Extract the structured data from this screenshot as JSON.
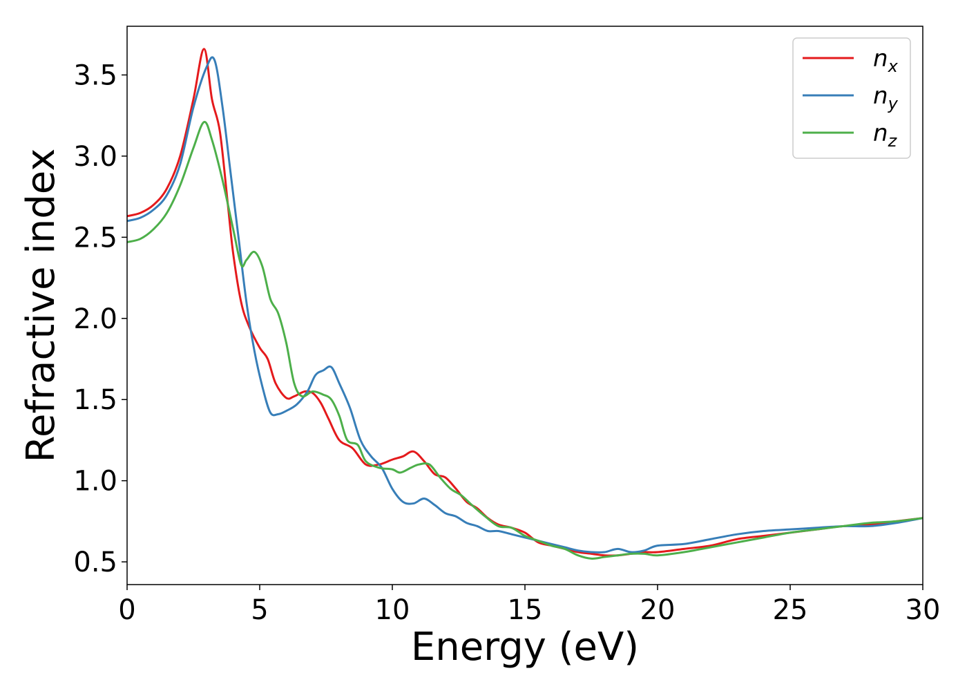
{
  "chart_data": {
    "type": "line",
    "title": "",
    "xlabel": "Energy (eV)",
    "ylabel": "Refractive index",
    "xlim": [
      0,
      30
    ],
    "ylim": [
      0.36,
      3.8
    ],
    "xticks": [
      0,
      5,
      10,
      15,
      20,
      25,
      30
    ],
    "xtick_labels": [
      "0",
      "5",
      "10",
      "15",
      "20",
      "25",
      "30"
    ],
    "yticks": [
      0.5,
      1.0,
      1.5,
      2.0,
      2.5,
      3.0,
      3.5
    ],
    "ytick_labels": [
      "0.5",
      "1.0",
      "1.5",
      "2.0",
      "2.5",
      "3.0",
      "3.5"
    ],
    "grid": false,
    "legend_position": "top-right",
    "series": [
      {
        "name": "n_x",
        "legend_base": "n",
        "legend_sub": "x",
        "color": "#e41a1c",
        "x": [
          0,
          0.5,
          1.0,
          1.5,
          2.0,
          2.5,
          2.9,
          3.2,
          3.5,
          3.8,
          4.0,
          4.3,
          4.6,
          5.0,
          5.3,
          5.6,
          6.0,
          6.3,
          6.7,
          7.0,
          7.3,
          7.6,
          8.0,
          8.5,
          9.0,
          9.5,
          10.0,
          10.4,
          10.8,
          11.2,
          11.6,
          12.0,
          12.4,
          12.8,
          13.2,
          13.6,
          14.0,
          14.5,
          15.0,
          15.5,
          16.0,
          16.5,
          17.0,
          17.5,
          18.0,
          18.5,
          19.0,
          19.5,
          20.0,
          21.0,
          22.0,
          23.0,
          24.0,
          25.0,
          26.0,
          27.0,
          28.0,
          29.0,
          30.0
        ],
        "y": [
          2.63,
          2.65,
          2.7,
          2.8,
          3.0,
          3.35,
          3.66,
          3.35,
          3.15,
          2.7,
          2.4,
          2.1,
          1.95,
          1.82,
          1.75,
          1.6,
          1.51,
          1.52,
          1.55,
          1.54,
          1.48,
          1.38,
          1.25,
          1.2,
          1.1,
          1.1,
          1.13,
          1.15,
          1.18,
          1.12,
          1.04,
          1.02,
          0.95,
          0.87,
          0.83,
          0.77,
          0.73,
          0.71,
          0.68,
          0.62,
          0.6,
          0.58,
          0.56,
          0.55,
          0.54,
          0.54,
          0.55,
          0.56,
          0.56,
          0.58,
          0.6,
          0.64,
          0.66,
          0.68,
          0.7,
          0.72,
          0.73,
          0.75,
          0.77
        ]
      },
      {
        "name": "n_y",
        "legend_base": "n",
        "legend_sub": "y",
        "color": "#377eb8",
        "x": [
          0,
          0.5,
          1.0,
          1.5,
          2.0,
          2.5,
          3.0,
          3.3,
          3.6,
          3.9,
          4.2,
          4.5,
          4.8,
          5.1,
          5.4,
          5.7,
          6.0,
          6.4,
          6.8,
          7.1,
          7.4,
          7.7,
          8.0,
          8.4,
          8.8,
          9.2,
          9.6,
          10.0,
          10.4,
          10.8,
          11.2,
          11.6,
          12.0,
          12.4,
          12.8,
          13.2,
          13.6,
          14.0,
          14.5,
          15.0,
          15.5,
          16.0,
          16.5,
          17.0,
          17.5,
          18.0,
          18.5,
          19.0,
          19.5,
          20.0,
          21.0,
          22.0,
          23.0,
          24.0,
          25.0,
          26.0,
          27.0,
          28.0,
          29.0,
          30.0
        ],
        "y": [
          2.6,
          2.62,
          2.67,
          2.76,
          2.95,
          3.3,
          3.55,
          3.59,
          3.3,
          2.9,
          2.5,
          2.1,
          1.8,
          1.58,
          1.42,
          1.41,
          1.43,
          1.47,
          1.55,
          1.65,
          1.68,
          1.7,
          1.6,
          1.45,
          1.25,
          1.15,
          1.08,
          0.95,
          0.87,
          0.86,
          0.89,
          0.85,
          0.8,
          0.78,
          0.74,
          0.72,
          0.69,
          0.69,
          0.67,
          0.65,
          0.63,
          0.61,
          0.59,
          0.57,
          0.56,
          0.56,
          0.58,
          0.56,
          0.57,
          0.6,
          0.61,
          0.64,
          0.67,
          0.69,
          0.7,
          0.71,
          0.72,
          0.72,
          0.74,
          0.77
        ]
      },
      {
        "name": "n_z",
        "legend_base": "n",
        "legend_sub": "z",
        "color": "#4daf4a",
        "x": [
          0,
          0.5,
          1.0,
          1.5,
          2.0,
          2.5,
          2.9,
          3.2,
          3.6,
          4.0,
          4.3,
          4.5,
          4.8,
          5.1,
          5.4,
          5.7,
          6.0,
          6.3,
          6.6,
          7.0,
          7.4,
          7.7,
          8.0,
          8.3,
          8.7,
          9.0,
          9.5,
          10.0,
          10.3,
          10.7,
          11.0,
          11.4,
          11.8,
          12.2,
          12.6,
          13.0,
          13.5,
          14.0,
          14.5,
          15.0,
          15.5,
          16.0,
          16.5,
          17.0,
          17.5,
          18.0,
          18.5,
          19.0,
          19.5,
          20.0,
          21.0,
          22.0,
          23.0,
          24.0,
          25.0,
          26.0,
          27.0,
          28.0,
          29.0,
          30.0
        ],
        "y": [
          2.47,
          2.49,
          2.55,
          2.65,
          2.82,
          3.05,
          3.21,
          3.1,
          2.85,
          2.55,
          2.33,
          2.36,
          2.41,
          2.32,
          2.12,
          2.03,
          1.85,
          1.6,
          1.52,
          1.55,
          1.53,
          1.5,
          1.4,
          1.25,
          1.22,
          1.12,
          1.08,
          1.07,
          1.05,
          1.08,
          1.1,
          1.1,
          1.02,
          0.95,
          0.91,
          0.85,
          0.78,
          0.72,
          0.71,
          0.66,
          0.63,
          0.6,
          0.58,
          0.54,
          0.52,
          0.53,
          0.54,
          0.55,
          0.55,
          0.54,
          0.56,
          0.59,
          0.62,
          0.65,
          0.68,
          0.7,
          0.72,
          0.74,
          0.75,
          0.77
        ]
      }
    ]
  }
}
